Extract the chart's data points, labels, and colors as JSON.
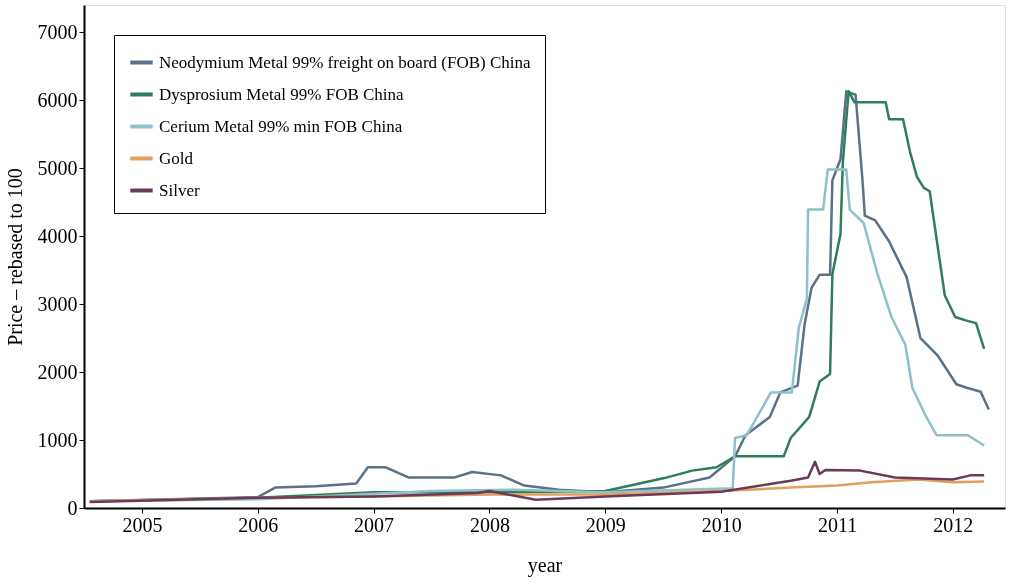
{
  "chart_data": {
    "type": "line",
    "xlabel": "year",
    "ylabel": "Price – rebased to 100",
    "xlim": [
      2004.5,
      2012.45
    ],
    "ylim": [
      0,
      7400
    ],
    "xticks": [
      2005,
      2006,
      2007,
      2008,
      2009,
      2010,
      2011,
      2012
    ],
    "yticks": [
      0,
      1000,
      2000,
      3000,
      4000,
      5000,
      6000,
      7000
    ],
    "grid": false,
    "legend": "top left",
    "line_style": "solid",
    "marker": "none",
    "series": [
      {
        "name": "Neodymium Metal 99% freight on board (FOB) China",
        "color": "#5a7186",
        "x": [
          2004.55,
          2005.5,
          2006.0,
          2006.15,
          2006.5,
          2006.85,
          2006.95,
          2007.1,
          2007.3,
          2007.7,
          2007.85,
          2008.1,
          2008.3,
          2008.6,
          2009.0,
          2009.5,
          2009.9,
          2010.12,
          2010.21,
          2010.42,
          2010.51,
          2010.66,
          2010.72,
          2010.78,
          2010.85,
          2010.94,
          2010.96,
          2011.03,
          2011.08,
          2011.16,
          2011.22,
          2011.24,
          2011.33,
          2011.45,
          2011.6,
          2011.72,
          2011.87,
          2012.03,
          2012.12,
          2012.24,
          2012.31
        ],
        "values": [
          100,
          140,
          160,
          300,
          320,
          360,
          600,
          600,
          450,
          450,
          530,
          480,
          330,
          270,
          230,
          300,
          450,
          760,
          1070,
          1340,
          1700,
          1800,
          2700,
          3240,
          3430,
          3430,
          4820,
          5130,
          6130,
          6080,
          4820,
          4300,
          4230,
          3920,
          3400,
          2500,
          2240,
          1820,
          1770,
          1710,
          1450
        ]
      },
      {
        "name": "Dysprosium Metal 99% FOB China",
        "color": "#2e7d5b",
        "x": [
          2004.55,
          2006.0,
          2007.0,
          2008.0,
          2009.0,
          2009.51,
          2009.75,
          2009.96,
          2010.12,
          2010.54,
          2010.6,
          2010.76,
          2010.85,
          2010.94,
          2010.96,
          2011.03,
          2011.05,
          2011.1,
          2011.15,
          2011.42,
          2011.45,
          2011.57,
          2011.63,
          2011.69,
          2011.75,
          2011.8,
          2011.93,
          2012.02,
          2012.11,
          2012.2,
          2012.27
        ],
        "values": [
          100,
          150,
          230,
          230,
          250,
          440,
          550,
          600,
          760,
          760,
          1030,
          1340,
          1860,
          1970,
          3440,
          4030,
          5080,
          6130,
          5970,
          5970,
          5720,
          5720,
          5240,
          4870,
          4710,
          4660,
          3130,
          2810,
          2760,
          2720,
          2340
        ]
      },
      {
        "name": "Cerium Metal 99% min FOB China",
        "color": "#8fbfc8",
        "x": [
          2004.55,
          2006.0,
          2007.5,
          2008.2,
          2009.0,
          2010.1,
          2010.12,
          2010.22,
          2010.43,
          2010.61,
          2010.67,
          2010.74,
          2010.75,
          2010.88,
          2010.92,
          2011.08,
          2011.11,
          2011.23,
          2011.35,
          2011.47,
          2011.59,
          2011.65,
          2011.77,
          2011.86,
          2012.13,
          2012.27
        ],
        "values": [
          100,
          130,
          250,
          270,
          230,
          290,
          1030,
          1070,
          1700,
          1700,
          2650,
          3080,
          4390,
          4390,
          4980,
          4980,
          4390,
          4190,
          3440,
          2810,
          2400,
          1770,
          1340,
          1070,
          1070,
          920
        ]
      },
      {
        "name": "Gold",
        "color": "#e0a060",
        "x": [
          2004.55,
          2006.0,
          2007.0,
          2008.0,
          2009.0,
          2010.0,
          2010.6,
          2011.0,
          2011.3,
          2011.7,
          2012.0,
          2012.27
        ],
        "values": [
          100,
          150,
          170,
          200,
          200,
          250,
          300,
          330,
          380,
          420,
          380,
          390
        ]
      },
      {
        "name": "Silver",
        "color": "#6b3a5a",
        "x": [
          2004.55,
          2006.0,
          2007.0,
          2007.9,
          2008.0,
          2008.4,
          2009.0,
          2010.0,
          2010.6,
          2010.75,
          2010.81,
          2010.85,
          2010.9,
          2011.2,
          2011.5,
          2012.0,
          2012.15,
          2012.27
        ],
        "values": [
          90,
          150,
          170,
          220,
          250,
          120,
          170,
          240,
          400,
          450,
          680,
          500,
          560,
          550,
          450,
          420,
          480,
          480
        ]
      }
    ]
  }
}
